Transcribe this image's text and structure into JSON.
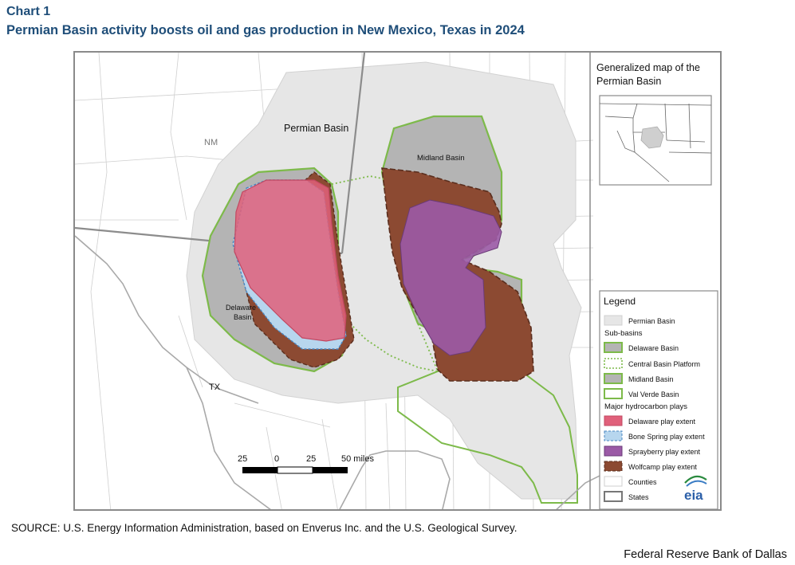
{
  "header": {
    "chart_label": "Chart 1",
    "title": "Permian Basin activity boosts oil and gas production in New Mexico, Texas in 2024"
  },
  "map": {
    "labels": {
      "permian_basin": "Permian Basin",
      "nm": "NM",
      "tx": "TX",
      "midland_basin": "Midland Basin",
      "delaware_basin_line1": "Delaware",
      "delaware_basin_line2": "Basin"
    },
    "scale_bar": {
      "tick_labels": [
        "25",
        "0",
        "25",
        "50 miles"
      ]
    }
  },
  "inset": {
    "title_line1": "Generalized map of the",
    "title_line2": "Permian Basin"
  },
  "legend": {
    "title": "Legend",
    "items": [
      {
        "label": "Permian Basin",
        "swatch": "permian"
      },
      {
        "heading": "Sub-basins"
      },
      {
        "label": "Delaware Basin",
        "swatch": "subbasin"
      },
      {
        "label": "Central Basin Platform",
        "swatch": "platform"
      },
      {
        "label": "Midland Basin",
        "swatch": "subbasin"
      },
      {
        "label": "Val Verde Basin",
        "swatch": "valverde"
      },
      {
        "heading": "Major hydrocarbon plays"
      },
      {
        "label": "Delaware play extent",
        "swatch": "delaware_play"
      },
      {
        "label": "Bone Spring play extent",
        "swatch": "bonespring"
      },
      {
        "label": "Sprayberry play extent",
        "swatch": "sprayberry"
      },
      {
        "label": "Wolfcamp play extent",
        "swatch": "wolfcamp"
      },
      {
        "label": "Counties",
        "swatch": "counties"
      },
      {
        "label": "States",
        "swatch": "states"
      }
    ],
    "logo_text": "eia"
  },
  "colors": {
    "permian_fill": "#e6e6e6",
    "subbasin_fill": "#b4b4b4",
    "subbasin_outline": "#7dba4a",
    "delaware_play": "#e0607a",
    "bone_spring": "#b7d6ee",
    "sprayberry": "#9b5aa6",
    "wolfcamp": "#8c4a32",
    "title_blue": "#1f4e79"
  },
  "footer": {
    "source": "SOURCE: U.S. Energy Information Administration, based on Enverus Inc. and the U.S. Geological Survey.",
    "credit": "Federal Reserve Bank of Dallas"
  }
}
